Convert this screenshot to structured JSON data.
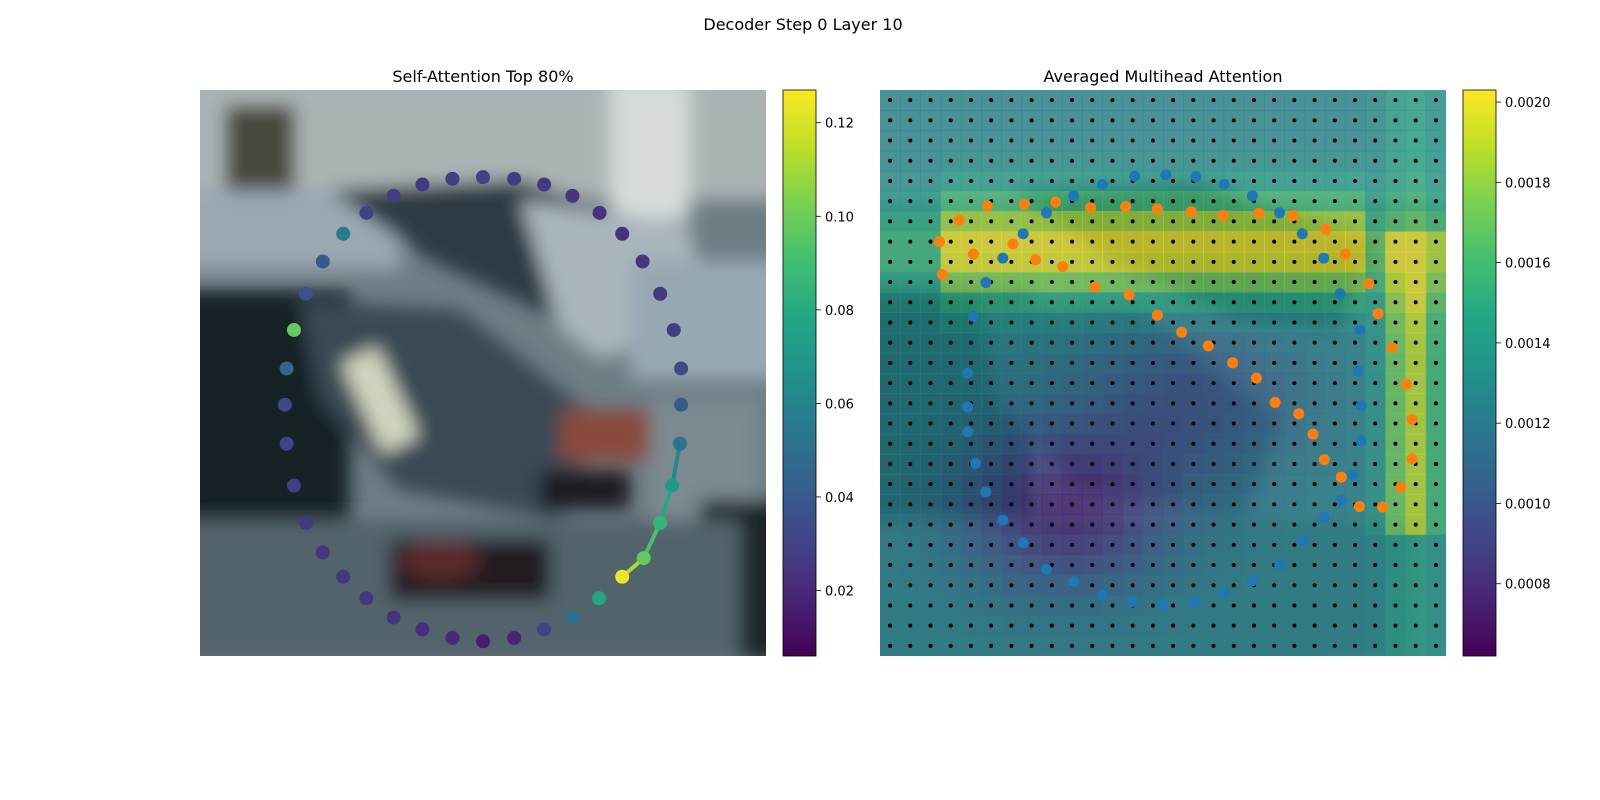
{
  "figure": {
    "suptitle": "Decoder Step 0 Layer 10"
  },
  "chart_data": [
    {
      "type": "scatter",
      "title": "Self-Attention Top 80%",
      "background": "blurred photo of parked cars",
      "colormap": "viridis",
      "xlim": [
        0,
        1
      ],
      "ylim": [
        0,
        1
      ],
      "colorbar": {
        "min": 0.006,
        "max": 0.127,
        "ticks": [
          0.02,
          0.04,
          0.06,
          0.08,
          0.1,
          0.12
        ],
        "tick_labels": [
          "0.02",
          "0.04",
          "0.06",
          "0.08",
          "0.10",
          "0.12"
        ]
      },
      "points": [
        {
          "x": 0.5,
          "y": 0.154,
          "v": 0.03
        },
        {
          "x": 0.555,
          "y": 0.157,
          "v": 0.028
        },
        {
          "x": 0.608,
          "y": 0.167,
          "v": 0.026
        },
        {
          "x": 0.658,
          "y": 0.187,
          "v": 0.025
        },
        {
          "x": 0.706,
          "y": 0.217,
          "v": 0.024
        },
        {
          "x": 0.746,
          "y": 0.254,
          "v": 0.023
        },
        {
          "x": 0.782,
          "y": 0.303,
          "v": 0.025
        },
        {
          "x": 0.813,
          "y": 0.36,
          "v": 0.026
        },
        {
          "x": 0.837,
          "y": 0.424,
          "v": 0.028
        },
        {
          "x": 0.85,
          "y": 0.492,
          "v": 0.034
        },
        {
          "x": 0.85,
          "y": 0.556,
          "v": 0.04
        },
        {
          "x": 0.848,
          "y": 0.625,
          "v": 0.052
        },
        {
          "x": 0.834,
          "y": 0.699,
          "v": 0.072
        },
        {
          "x": 0.813,
          "y": 0.765,
          "v": 0.085
        },
        {
          "x": 0.784,
          "y": 0.827,
          "v": 0.098
        },
        {
          "x": 0.746,
          "y": 0.86,
          "v": 0.124
        },
        {
          "x": 0.705,
          "y": 0.898,
          "v": 0.078
        },
        {
          "x": 0.658,
          "y": 0.932,
          "v": 0.05
        },
        {
          "x": 0.608,
          "y": 0.953,
          "v": 0.03
        },
        {
          "x": 0.555,
          "y": 0.968,
          "v": 0.018
        },
        {
          "x": 0.5,
          "y": 0.974,
          "v": 0.016
        },
        {
          "x": 0.446,
          "y": 0.968,
          "v": 0.02
        },
        {
          "x": 0.393,
          "y": 0.953,
          "v": 0.022
        },
        {
          "x": 0.342,
          "y": 0.932,
          "v": 0.024
        },
        {
          "x": 0.294,
          "y": 0.898,
          "v": 0.026
        },
        {
          "x": 0.253,
          "y": 0.86,
          "v": 0.025
        },
        {
          "x": 0.217,
          "y": 0.817,
          "v": 0.024
        },
        {
          "x": 0.187,
          "y": 0.765,
          "v": 0.026
        },
        {
          "x": 0.166,
          "y": 0.699,
          "v": 0.028
        },
        {
          "x": 0.153,
          "y": 0.625,
          "v": 0.03
        },
        {
          "x": 0.15,
          "y": 0.556,
          "v": 0.032
        },
        {
          "x": 0.153,
          "y": 0.492,
          "v": 0.046
        },
        {
          "x": 0.166,
          "y": 0.424,
          "v": 0.098
        },
        {
          "x": 0.187,
          "y": 0.36,
          "v": 0.036
        },
        {
          "x": 0.217,
          "y": 0.303,
          "v": 0.04
        },
        {
          "x": 0.253,
          "y": 0.254,
          "v": 0.055
        },
        {
          "x": 0.294,
          "y": 0.217,
          "v": 0.03
        },
        {
          "x": 0.342,
          "y": 0.187,
          "v": 0.027
        },
        {
          "x": 0.393,
          "y": 0.167,
          "v": 0.026
        },
        {
          "x": 0.446,
          "y": 0.157,
          "v": 0.028
        }
      ],
      "highlight_segments": [
        [
          11,
          12
        ],
        [
          12,
          13
        ],
        [
          13,
          14
        ],
        [
          14,
          15
        ]
      ]
    },
    {
      "type": "heatmap",
      "title": "Averaged Multihead Attention",
      "background": "blurred photo of parked cars",
      "colormap": "viridis",
      "grid": {
        "rows": 28,
        "cols": 28
      },
      "xlim": [
        0,
        1
      ],
      "ylim": [
        0,
        1
      ],
      "colorbar": {
        "min": 0.00062,
        "max": 0.00203,
        "ticks": [
          0.0008,
          0.001,
          0.0012,
          0.0014,
          0.0016,
          0.0018,
          0.002
        ],
        "tick_labels": [
          "0.0008",
          "0.0010",
          "0.0012",
          "0.0014",
          "0.0016",
          "0.0018",
          "0.0020"
        ]
      },
      "series": [
        {
          "color": "#1f77b4",
          "points": [
            {
              "x": 0.45,
              "y": 0.152
            },
            {
              "x": 0.505,
              "y": 0.15
            },
            {
              "x": 0.558,
              "y": 0.153
            },
            {
              "x": 0.608,
              "y": 0.167
            },
            {
              "x": 0.658,
              "y": 0.187
            },
            {
              "x": 0.706,
              "y": 0.217
            },
            {
              "x": 0.746,
              "y": 0.254
            },
            {
              "x": 0.784,
              "y": 0.297
            },
            {
              "x": 0.813,
              "y": 0.36
            },
            {
              "x": 0.848,
              "y": 0.424
            },
            {
              "x": 0.845,
              "y": 0.497
            },
            {
              "x": 0.85,
              "y": 0.558
            },
            {
              "x": 0.85,
              "y": 0.62
            },
            {
              "x": 0.835,
              "y": 0.68
            },
            {
              "x": 0.815,
              "y": 0.725
            },
            {
              "x": 0.785,
              "y": 0.755
            },
            {
              "x": 0.746,
              "y": 0.796
            },
            {
              "x": 0.706,
              "y": 0.839
            },
            {
              "x": 0.658,
              "y": 0.867
            },
            {
              "x": 0.608,
              "y": 0.889
            },
            {
              "x": 0.555,
              "y": 0.905
            },
            {
              "x": 0.5,
              "y": 0.909
            },
            {
              "x": 0.446,
              "y": 0.904
            },
            {
              "x": 0.393,
              "y": 0.892
            },
            {
              "x": 0.342,
              "y": 0.869
            },
            {
              "x": 0.294,
              "y": 0.847
            },
            {
              "x": 0.253,
              "y": 0.8
            },
            {
              "x": 0.217,
              "y": 0.76
            },
            {
              "x": 0.187,
              "y": 0.71
            },
            {
              "x": 0.169,
              "y": 0.66
            },
            {
              "x": 0.155,
              "y": 0.604
            },
            {
              "x": 0.155,
              "y": 0.56
            },
            {
              "x": 0.155,
              "y": 0.5
            },
            {
              "x": 0.165,
              "y": 0.4
            },
            {
              "x": 0.187,
              "y": 0.34
            },
            {
              "x": 0.217,
              "y": 0.297
            },
            {
              "x": 0.253,
              "y": 0.254
            },
            {
              "x": 0.294,
              "y": 0.217
            },
            {
              "x": 0.342,
              "y": 0.187
            },
            {
              "x": 0.393,
              "y": 0.167
            }
          ]
        },
        {
          "color": "#ff7f0e",
          "points": [
            {
              "x": 0.105,
              "y": 0.268
            },
            {
              "x": 0.14,
              "y": 0.23
            },
            {
              "x": 0.19,
              "y": 0.205
            },
            {
              "x": 0.255,
              "y": 0.202
            },
            {
              "x": 0.31,
              "y": 0.198
            },
            {
              "x": 0.372,
              "y": 0.208
            },
            {
              "x": 0.434,
              "y": 0.206
            },
            {
              "x": 0.49,
              "y": 0.21
            },
            {
              "x": 0.55,
              "y": 0.215
            },
            {
              "x": 0.606,
              "y": 0.222
            },
            {
              "x": 0.67,
              "y": 0.218
            },
            {
              "x": 0.73,
              "y": 0.222
            },
            {
              "x": 0.788,
              "y": 0.246
            },
            {
              "x": 0.822,
              "y": 0.29
            },
            {
              "x": 0.864,
              "y": 0.342
            },
            {
              "x": 0.88,
              "y": 0.395
            },
            {
              "x": 0.905,
              "y": 0.455
            },
            {
              "x": 0.93,
              "y": 0.52
            },
            {
              "x": 0.94,
              "y": 0.582
            },
            {
              "x": 0.94,
              "y": 0.652
            },
            {
              "x": 0.92,
              "y": 0.702
            },
            {
              "x": 0.888,
              "y": 0.737
            },
            {
              "x": 0.847,
              "y": 0.736
            },
            {
              "x": 0.815,
              "y": 0.684
            },
            {
              "x": 0.785,
              "y": 0.653
            },
            {
              "x": 0.765,
              "y": 0.608
            },
            {
              "x": 0.74,
              "y": 0.572
            },
            {
              "x": 0.698,
              "y": 0.552
            },
            {
              "x": 0.665,
              "y": 0.509
            },
            {
              "x": 0.623,
              "y": 0.482
            },
            {
              "x": 0.58,
              "y": 0.452
            },
            {
              "x": 0.533,
              "y": 0.428
            },
            {
              "x": 0.49,
              "y": 0.398
            },
            {
              "x": 0.44,
              "y": 0.362
            },
            {
              "x": 0.38,
              "y": 0.348
            },
            {
              "x": 0.323,
              "y": 0.312
            },
            {
              "x": 0.275,
              "y": 0.3
            },
            {
              "x": 0.235,
              "y": 0.272
            },
            {
              "x": 0.165,
              "y": 0.29
            },
            {
              "x": 0.11,
              "y": 0.326
            }
          ]
        }
      ]
    }
  ]
}
